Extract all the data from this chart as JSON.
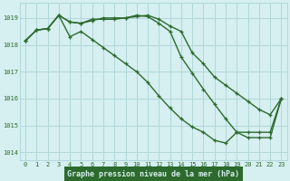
{
  "line1": {
    "x": [
      0,
      1,
      2,
      3,
      4,
      5,
      6,
      7,
      8,
      9,
      10,
      11,
      12,
      13,
      14,
      15,
      16,
      17,
      18,
      19,
      20,
      21,
      22,
      23
    ],
    "y": [
      1018.15,
      1018.55,
      1018.6,
      1019.1,
      1018.85,
      1018.8,
      1018.95,
      1018.95,
      1018.95,
      1019.0,
      1019.05,
      1019.1,
      1018.95,
      1018.7,
      1018.5,
      1017.7,
      1017.3,
      1016.8,
      1016.5,
      1016.2,
      1015.9,
      1015.6,
      1015.4,
      1016.0
    ]
  },
  "line2": {
    "x": [
      0,
      1,
      2,
      3,
      4,
      5,
      6,
      7,
      8,
      9,
      10,
      11,
      12,
      13,
      14,
      15,
      16,
      17,
      18,
      19,
      20,
      21,
      22,
      23
    ],
    "y": [
      1018.15,
      1018.55,
      1018.6,
      1019.1,
      1018.85,
      1018.8,
      1018.9,
      1019.0,
      1019.0,
      1019.0,
      1019.1,
      1019.05,
      1018.8,
      1018.5,
      1017.55,
      1016.95,
      1016.35,
      1015.8,
      1015.25,
      1014.75,
      1014.55,
      1014.55,
      1014.55,
      1016.0
    ]
  },
  "line3": {
    "x": [
      0,
      1,
      2,
      3,
      4,
      5,
      6,
      7,
      8,
      9,
      10,
      11,
      12,
      13,
      14,
      15,
      16,
      17,
      18,
      19,
      20,
      21,
      22,
      23
    ],
    "y": [
      1018.15,
      1018.55,
      1018.6,
      1019.1,
      1018.3,
      1018.5,
      1018.2,
      1017.9,
      1017.6,
      1017.3,
      1017.0,
      1016.6,
      1016.1,
      1015.65,
      1015.25,
      1014.95,
      1014.75,
      1014.45,
      1014.35,
      1014.75,
      1014.75,
      1014.75,
      1014.75,
      1016.0
    ]
  },
  "line_color": "#2d6a2d",
  "bg_color": "#d6eff0",
  "grid_color": "#b0d8da",
  "xlabel": "Graphe pression niveau de la mer (hPa)",
  "xlabel_bg": "#2d6a2d",
  "xlabel_fg": "#d6eff0",
  "ylim": [
    1013.7,
    1019.55
  ],
  "xlim": [
    -0.5,
    23.5
  ],
  "yticks": [
    1014,
    1015,
    1016,
    1017,
    1018,
    1019
  ],
  "xticks": [
    0,
    1,
    2,
    3,
    4,
    5,
    6,
    7,
    8,
    9,
    10,
    11,
    12,
    13,
    14,
    15,
    16,
    17,
    18,
    19,
    20,
    21,
    22,
    23
  ]
}
